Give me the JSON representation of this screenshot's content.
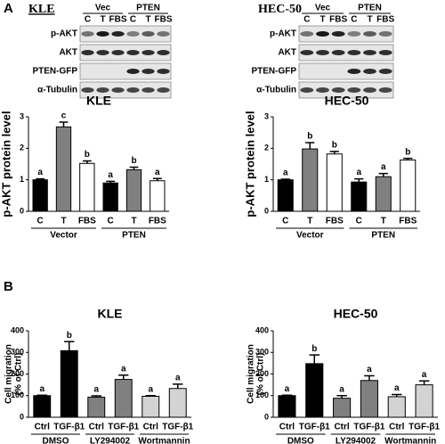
{
  "panel_labels": [
    "A",
    "B"
  ],
  "blots": [
    {
      "title": "KLE",
      "groups": [
        "Vec",
        "PTEN"
      ],
      "lanes": [
        "C",
        "T",
        "FBS",
        "C",
        "T",
        "FBS"
      ],
      "rows": [
        "p-AKT",
        "AKT",
        "PTEN-GFP",
        "α-Tubulin"
      ]
    },
    {
      "title": "HEC-50",
      "groups": [
        "Vec",
        "PTEN"
      ],
      "lanes": [
        "C",
        "T",
        "FBS",
        "C",
        "T",
        "FBS"
      ],
      "rows": [
        "p-AKT",
        "AKT",
        "PTEN-GFP",
        "α-Tubulin"
      ]
    }
  ],
  "chart_data": [
    {
      "type": "bar",
      "title": "KLE",
      "ylabel": [
        "p-AKT protein level"
      ],
      "categories": [
        "C",
        "T",
        "FBS",
        "C",
        "T",
        "FBS"
      ],
      "groups": [
        "Vector",
        "PTEN"
      ],
      "values": [
        1.0,
        2.68,
        1.52,
        0.9,
        1.32,
        0.97
      ],
      "errors": [
        0.03,
        0.15,
        0.08,
        0.05,
        0.08,
        0.07
      ],
      "annotations": [
        "a",
        "c",
        "b",
        "a",
        "b",
        "a"
      ],
      "colors": [
        "#000000",
        "#808080",
        "#ffffff",
        "#000000",
        "#808080",
        "#ffffff"
      ],
      "ylim": [
        0,
        3
      ],
      "yticks": [
        0,
        1,
        2,
        3
      ]
    },
    {
      "type": "bar",
      "title": "HEC-50",
      "ylabel": [
        "p-AKT protein level"
      ],
      "categories": [
        "C",
        "T",
        "FBS",
        "C",
        "T",
        "FBS"
      ],
      "groups": [
        "Vector",
        "PTEN"
      ],
      "values": [
        1.0,
        1.98,
        1.82,
        0.93,
        1.1,
        1.63
      ],
      "errors": [
        0.02,
        0.2,
        0.08,
        0.1,
        0.1,
        0.05
      ],
      "annotations": [
        "a",
        "b",
        "b",
        "a",
        "a",
        "b"
      ],
      "colors": [
        "#000000",
        "#808080",
        "#ffffff",
        "#000000",
        "#808080",
        "#ffffff"
      ],
      "ylim": [
        0,
        3
      ],
      "yticks": [
        0,
        1,
        2,
        3
      ]
    },
    {
      "type": "bar",
      "title": "KLE",
      "ylabel": [
        "Cell migration",
        "(% of Ctrl)"
      ],
      "categories": [
        "Ctrl",
        "TGF-β1",
        "Ctrl",
        "TGF-β1",
        "Ctrl",
        "TGF-β1"
      ],
      "groups": [
        "DMSO",
        "LY294002",
        "Wortmannin"
      ],
      "values": [
        100,
        308,
        93,
        175,
        97,
        133
      ],
      "errors": [
        2,
        42,
        6,
        20,
        3,
        20
      ],
      "annotations": [
        "a",
        "b",
        "a",
        "a",
        "a",
        "a"
      ],
      "colors": [
        "#000000",
        "#000000",
        "#808080",
        "#808080",
        "#d3d3d3",
        "#d3d3d3"
      ],
      "ylim": [
        0,
        400
      ],
      "yticks": [
        0,
        100,
        200,
        300,
        400
      ]
    },
    {
      "type": "bar",
      "title": "HEC-50",
      "ylabel": [
        "Cell migration",
        "(% of Ctrl)"
      ],
      "categories": [
        "Ctrl",
        "TGF-β1",
        "Ctrl",
        "TGF-β1",
        "Ctrl",
        "TGF-β1"
      ],
      "groups": [
        "DMSO",
        "LY294002",
        "Wortmannin"
      ],
      "values": [
        100,
        248,
        88,
        170,
        95,
        150
      ],
      "errors": [
        2,
        40,
        12,
        22,
        10,
        18
      ],
      "annotations": [
        "a",
        "b",
        "a",
        "a",
        "a",
        "a"
      ],
      "colors": [
        "#000000",
        "#000000",
        "#808080",
        "#808080",
        "#d3d3d3",
        "#d3d3d3"
      ],
      "ylim": [
        0,
        400
      ],
      "yticks": [
        0,
        100,
        200,
        300,
        400
      ]
    }
  ]
}
